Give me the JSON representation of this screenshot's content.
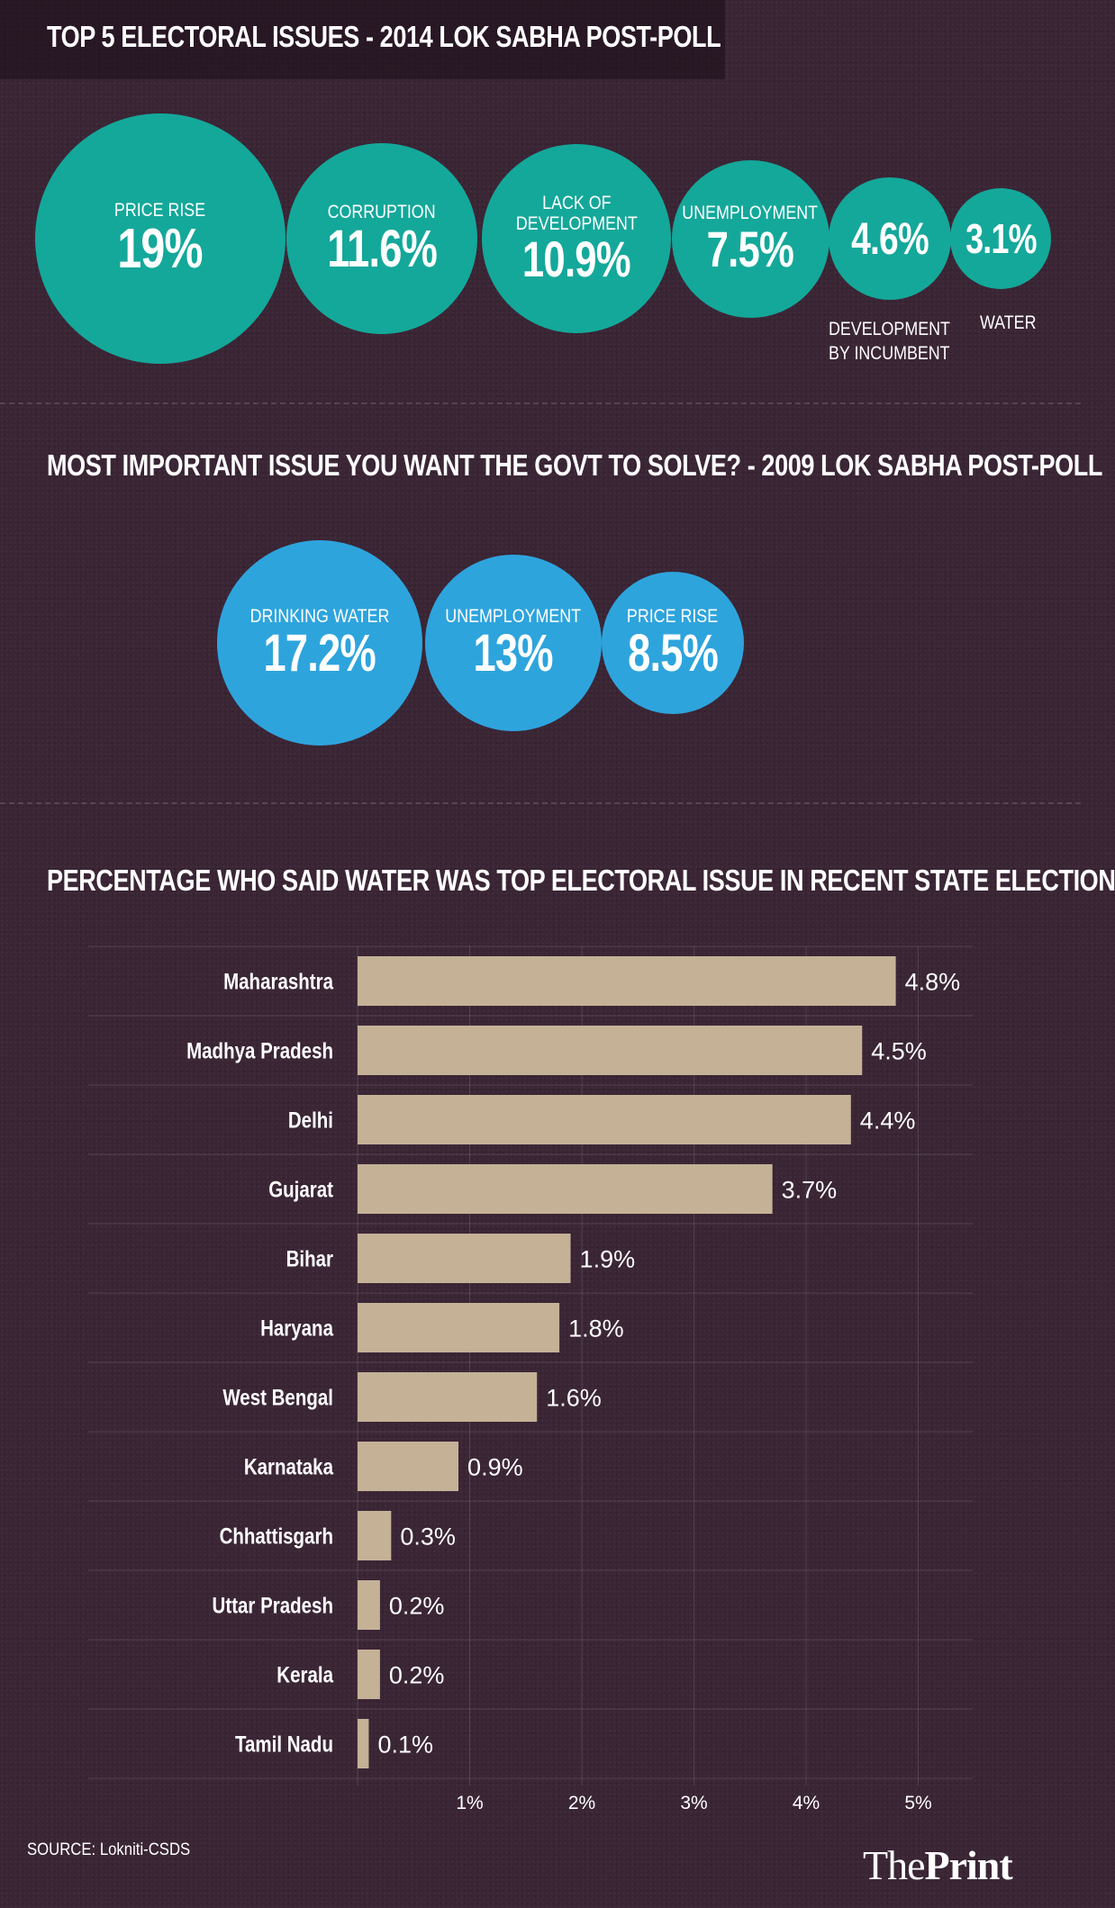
{
  "colors": {
    "background": "#3a2535",
    "teal": "#14a89a",
    "blue": "#2ea4dd",
    "bar": "#c5b196"
  },
  "chart_data": [
    {
      "type": "bubble",
      "title": "TOP 5 ELECTORAL ISSUES - 2014 LOK SABHA POST-POLL",
      "items": [
        {
          "label": "PRICE RISE",
          "value": 19,
          "display": "19%",
          "label_position": "inside"
        },
        {
          "label": "CORRUPTION",
          "value": 11.6,
          "display": "11.6%",
          "label_position": "inside"
        },
        {
          "label": "LACK OF DEVELOPMENT",
          "value": 10.9,
          "display": "10.9%",
          "label_position": "inside"
        },
        {
          "label": "UNEMPLOYMENT",
          "value": 7.5,
          "display": "7.5%",
          "label_position": "inside"
        },
        {
          "label": "DEVELOPMENT BY INCUMBENT",
          "value": 4.6,
          "display": "4.6%",
          "label_position": "below"
        },
        {
          "label": "WATER",
          "value": 3.1,
          "display": "3.1%",
          "label_position": "below"
        }
      ]
    },
    {
      "type": "bubble",
      "title": "MOST IMPORTANT ISSUE YOU WANT THE GOVT TO SOLVE? - 2009 LOK SABHA POST-POLL",
      "items": [
        {
          "label": "DRINKING WATER",
          "value": 17.2,
          "display": "17.2%",
          "label_position": "inside"
        },
        {
          "label": "UNEMPLOYMENT",
          "value": 13,
          "display": "13%",
          "label_position": "inside"
        },
        {
          "label": "PRICE RISE",
          "value": 8.5,
          "display": "8.5%",
          "label_position": "inside"
        }
      ]
    },
    {
      "type": "bar",
      "orientation": "horizontal",
      "title": "PERCENTAGE WHO SAID WATER WAS TOP ELECTORAL ISSUE IN RECENT STATE ELECTION",
      "categories": [
        "Maharashtra",
        "Madhya Pradesh",
        "Delhi",
        "Gujarat",
        "Bihar",
        "Haryana",
        "West Bengal",
        "Karnataka",
        "Chhattisgarh",
        "Uttar Pradesh",
        "Kerala",
        "Tamil Nadu"
      ],
      "values": [
        4.8,
        4.5,
        4.4,
        3.7,
        1.9,
        1.8,
        1.6,
        0.9,
        0.3,
        0.2,
        0.2,
        0.1
      ],
      "value_labels": [
        "4.8%",
        "4.5%",
        "4.4%",
        "3.7%",
        "1.9%",
        "1.8%",
        "1.6%",
        "0.9%",
        "0.3%",
        "0.2%",
        "0.2%",
        "0.1%"
      ],
      "xticks": [
        1,
        2,
        3,
        4,
        5
      ],
      "xtick_labels": [
        "1%",
        "2%",
        "3%",
        "4%",
        "5%"
      ],
      "xlim": [
        0,
        5.5
      ],
      "grid": true
    }
  ],
  "source": "SOURCE: Lokniti-CSDS",
  "logo": {
    "part1": "The",
    "part2": "Print"
  }
}
